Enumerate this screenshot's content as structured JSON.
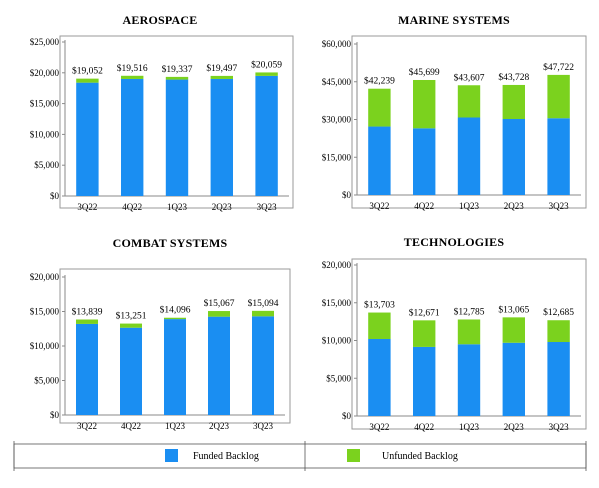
{
  "colors": {
    "funded": "#1a8ef2",
    "unfunded": "#7bd21e",
    "axis": "#8a8a8a",
    "frame": "#9a9a9a"
  },
  "legend": {
    "funded_label": "Funded Backlog",
    "unfunded_label": "Unfunded Backlog"
  },
  "chart_data": [
    {
      "type": "bar",
      "title": "AEROSPACE",
      "categories": [
        "3Q22",
        "4Q22",
        "1Q23",
        "2Q23",
        "3Q23"
      ],
      "series": [
        {
          "name": "Funded Backlog",
          "values": [
            18400,
            19000,
            18900,
            19000,
            19500
          ]
        },
        {
          "name": "Unfunded Backlog",
          "values": [
            652,
            516,
            437,
            497,
            559
          ]
        }
      ],
      "totals": [
        "$19,052",
        "$19,516",
        "$19,337",
        "$19,497",
        "$20,059"
      ],
      "ylim": [
        0,
        25000
      ],
      "yticks": [
        0,
        5000,
        10000,
        15000,
        20000,
        25000
      ],
      "yticklabels": [
        "$0",
        "$5,000",
        "$10,000",
        "$15,000",
        "$20,000",
        "$25,000"
      ]
    },
    {
      "type": "bar",
      "title": "MARINE SYSTEMS",
      "categories": [
        "3Q22",
        "4Q22",
        "1Q23",
        "2Q23",
        "3Q23"
      ],
      "series": [
        {
          "name": "Funded Backlog",
          "values": [
            27200,
            26500,
            30800,
            30200,
            30500
          ]
        },
        {
          "name": "Unfunded Backlog",
          "values": [
            15039,
            19199,
            12807,
            13528,
            17222
          ]
        }
      ],
      "totals": [
        "$42,239",
        "$45,699",
        "$43,607",
        "$43,728",
        "$47,722"
      ],
      "ylim": [
        0,
        60000
      ],
      "yticks": [
        0,
        15000,
        30000,
        45000,
        60000
      ],
      "yticklabels": [
        "$0",
        "$15,000",
        "$30,000",
        "$45,000",
        "$60,000"
      ]
    },
    {
      "type": "bar",
      "title": "COMBAT SYSTEMS",
      "categories": [
        "3Q22",
        "4Q22",
        "1Q23",
        "2Q23",
        "3Q23"
      ],
      "series": [
        {
          "name": "Funded Backlog",
          "values": [
            13200,
            12650,
            13900,
            14250,
            14300
          ]
        },
        {
          "name": "Unfunded Backlog",
          "values": [
            639,
            601,
            196,
            817,
            794
          ]
        }
      ],
      "totals": [
        "$13,839",
        "$13,251",
        "$14,096",
        "$15,067",
        "$15,094"
      ],
      "ylim": [
        0,
        20000
      ],
      "yticks": [
        0,
        5000,
        10000,
        15000,
        20000
      ],
      "yticklabels": [
        "$0",
        "$5,000",
        "$10,000",
        "$15,000",
        "$20,000"
      ]
    },
    {
      "type": "bar",
      "title": "TECHNOLOGIES",
      "categories": [
        "3Q22",
        "4Q22",
        "1Q23",
        "2Q23",
        "3Q23"
      ],
      "series": [
        {
          "name": "Funded Backlog",
          "values": [
            10200,
            9150,
            9500,
            9700,
            9800
          ]
        },
        {
          "name": "Unfunded Backlog",
          "values": [
            3503,
            3521,
            3285,
            3365,
            2885
          ]
        }
      ],
      "totals": [
        "$13,703",
        "$12,671",
        "$12,785",
        "$13,065",
        "$12,685"
      ],
      "ylim": [
        0,
        20000
      ],
      "yticks": [
        0,
        5000,
        10000,
        15000,
        20000
      ],
      "yticklabels": [
        "$0",
        "$5,000",
        "$10,000",
        "$15,000",
        "$20,000"
      ]
    }
  ]
}
